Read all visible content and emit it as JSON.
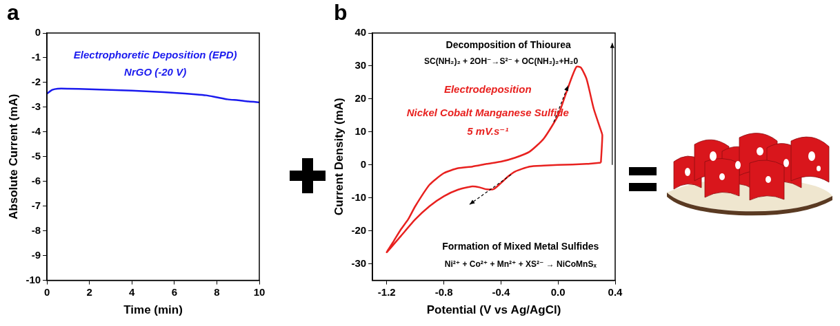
{
  "chart_data": [
    {
      "panel": "a",
      "type": "line",
      "x_label": "Time (min)",
      "y_label": "Absolute Current (mA)",
      "annotations": [
        {
          "text": "Electrophoretic Deposition (EPD)",
          "color": "#1a1aee"
        },
        {
          "text": "NrGO (-20 V)",
          "color": "#1a1aee"
        }
      ],
      "x": [
        0,
        0.25,
        0.5,
        1,
        2,
        3,
        4,
        5,
        6,
        7,
        7.5,
        8,
        8.5,
        9,
        9.5,
        10
      ],
      "values": [
        -2.45,
        -2.3,
        -2.25,
        -2.25,
        -2.27,
        -2.3,
        -2.33,
        -2.37,
        -2.42,
        -2.48,
        -2.52,
        -2.6,
        -2.68,
        -2.72,
        -2.77,
        -2.8
      ],
      "color": "#1a1aee",
      "xlim": [
        0,
        10
      ],
      "xticks": [
        0,
        2,
        4,
        6,
        8,
        10
      ],
      "ylim": [
        -10,
        0
      ],
      "yticks": [
        -10,
        -9,
        -8,
        -7,
        -6,
        -5,
        -4,
        -3,
        -2,
        -1,
        0
      ],
      "grid": false
    },
    {
      "panel": "b",
      "type": "line",
      "x_label": "Potential (V vs Ag/AgCl)",
      "y_label": "Current Density (mA)",
      "annotations": [
        {
          "text": "Decomposition of Thiourea",
          "color": "#000000"
        },
        {
          "text": "SC(NH₂)₂ + 2OH⁻→S²⁻ + OC(NH₂)₂+H₂0",
          "color": "#000000"
        },
        {
          "text": "Electrodeposition",
          "color": "#e8211f"
        },
        {
          "text": "Nickel Cobalt Manganese Sulfide",
          "color": "#e8211f"
        },
        {
          "text": "5 mV.s⁻¹",
          "color": "#e8211f"
        },
        {
          "text": "Formation of Mixed Metal Sulfides",
          "color": "#000000"
        },
        {
          "text": "Ni²⁺ + Co²⁺ + Mn²⁺ + XS²⁻ → NiCoMnSₓ",
          "color": "#000000"
        }
      ],
      "x": [
        0.3,
        0.25,
        0.2,
        0.1,
        0.0,
        -0.1,
        -0.2,
        -0.3,
        -0.35,
        -0.4,
        -0.45,
        -0.5,
        -0.55,
        -0.6,
        -0.7,
        -0.8,
        -0.9,
        -1.0,
        -1.1,
        -1.2,
        -1.15,
        -1.1,
        -1.05,
        -1.0,
        -0.9,
        -0.8,
        -0.7,
        -0.6,
        -0.5,
        -0.4,
        -0.3,
        -0.2,
        -0.1,
        0.0,
        0.05,
        0.1,
        0.13,
        0.16,
        0.2,
        0.25,
        0.3,
        0.31,
        0.3
      ],
      "values": [
        0.7,
        0.5,
        0.3,
        0.1,
        0.0,
        -0.2,
        -0.5,
        -2.0,
        -3.5,
        -5.5,
        -7.3,
        -7.4,
        -6.8,
        -6.5,
        -7.5,
        -9.5,
        -12.5,
        -16.5,
        -21.5,
        -26.5,
        -23.0,
        -19.5,
        -16.5,
        -12.5,
        -6.0,
        -2.5,
        -1.0,
        -0.5,
        0.3,
        1.0,
        2.2,
        4.0,
        8.0,
        15.0,
        21.0,
        27.0,
        29.8,
        29.5,
        26.0,
        17.0,
        10.5,
        9.0,
        0.7
      ],
      "color": "#e8211f",
      "xlim": [
        -1.3,
        0.4
      ],
      "xticks": [
        -1.2,
        -0.8,
        -0.4,
        {
          "value": 0,
          "label": "0.0"
        },
        0.4
      ],
      "ylim": [
        -35,
        40
      ],
      "yticks": [
        -30,
        -20,
        -10,
        0,
        10,
        20,
        30,
        40
      ],
      "grid": false
    }
  ]
}
